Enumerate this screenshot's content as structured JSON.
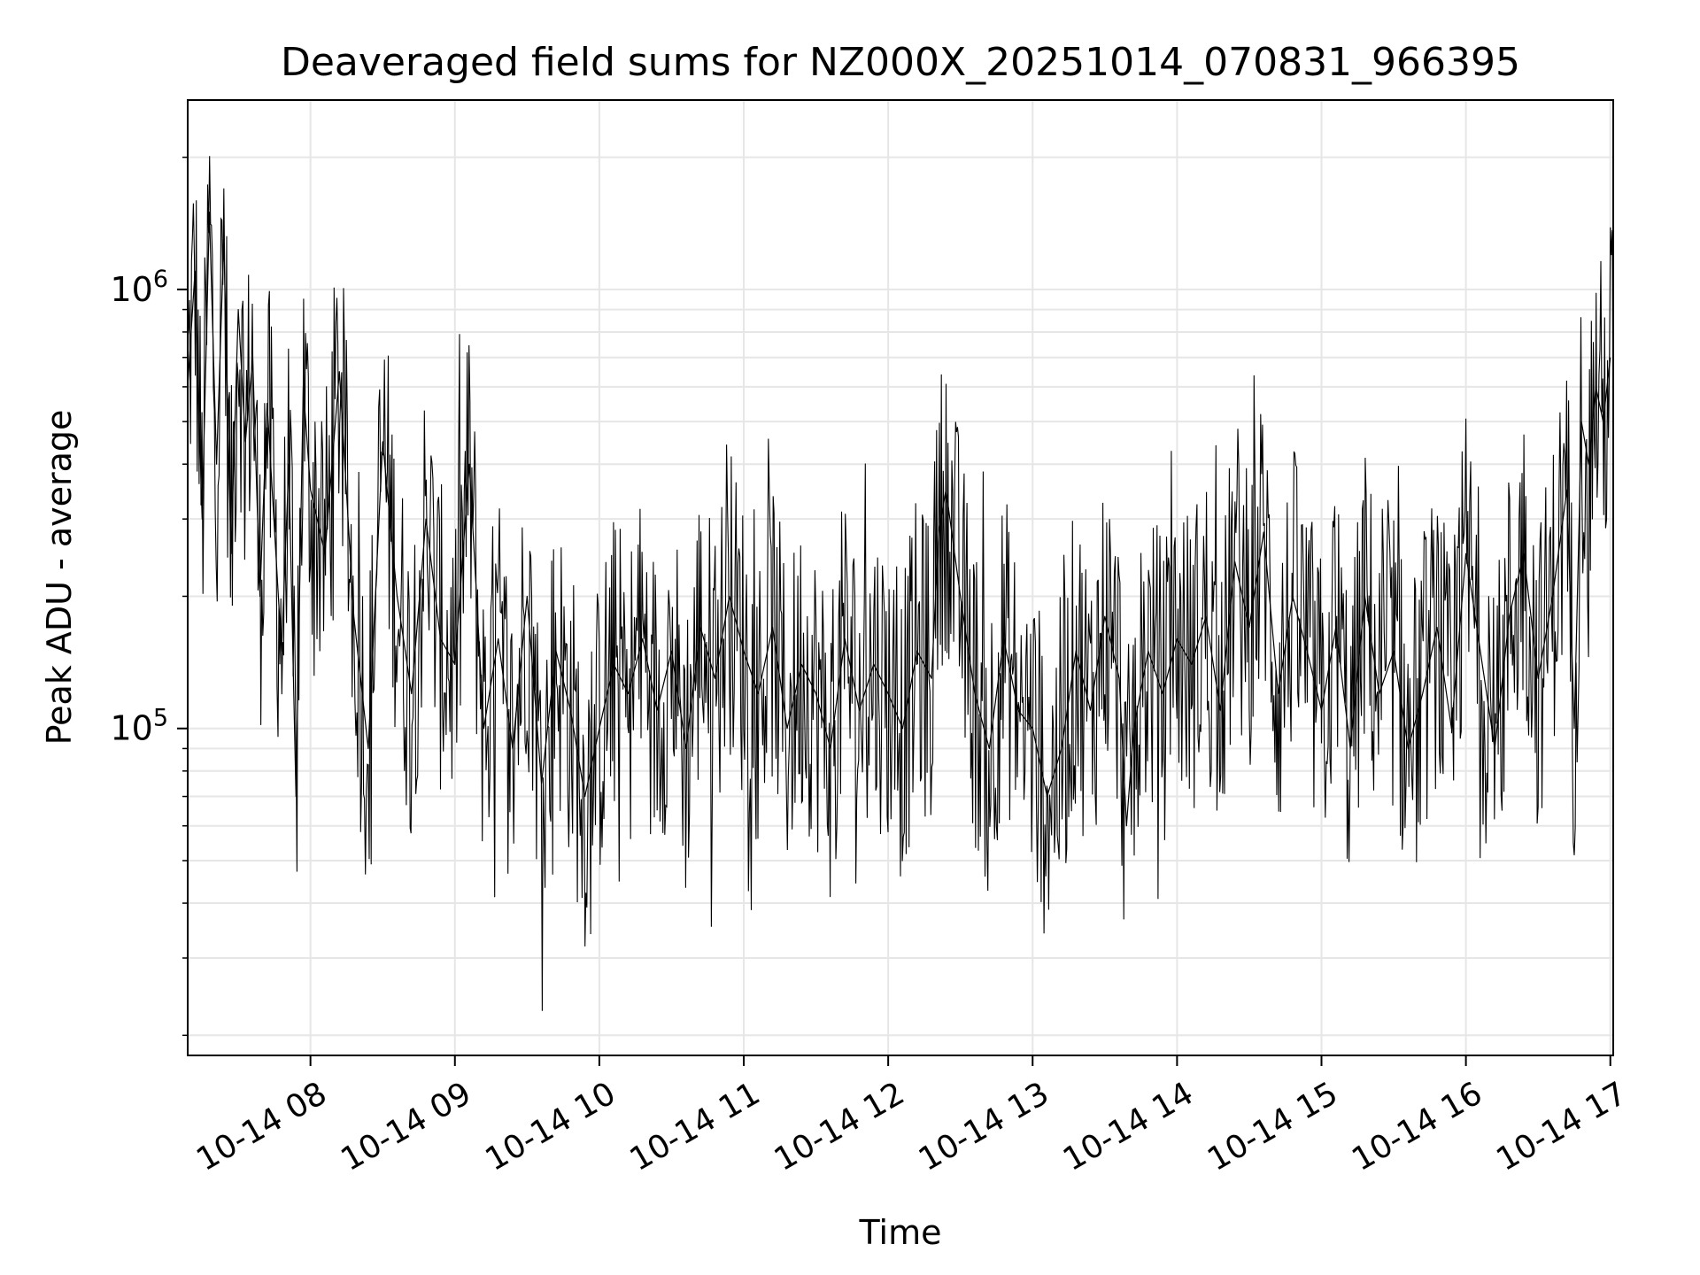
{
  "chart_data": {
    "type": "line",
    "title": "Deaveraged field sums for NZ000X_20251014_070831_966395",
    "xlabel": "Time",
    "ylabel": "Peak ADU - average",
    "yscale": "log",
    "ylim": [
      18000,
      2700000
    ],
    "xlim_hours": [
      7.15,
      17.02
    ],
    "grid": true,
    "legend": "none",
    "line_color": "#000000",
    "grid_color": "#e6e6e6",
    "x_tick_labels": [
      {
        "hour": 8,
        "label": "10-14 08"
      },
      {
        "hour": 9,
        "label": "10-14 09"
      },
      {
        "hour": 10,
        "label": "10-14 10"
      },
      {
        "hour": 11,
        "label": "10-14 11"
      },
      {
        "hour": 12,
        "label": "10-14 12"
      },
      {
        "hour": 13,
        "label": "10-14 13"
      },
      {
        "hour": 14,
        "label": "10-14 14"
      },
      {
        "hour": 15,
        "label": "10-14 15"
      },
      {
        "hour": 16,
        "label": "10-14 16"
      },
      {
        "hour": 17,
        "label": "10-14 17"
      }
    ],
    "y_tick_labels": [
      {
        "value": 100000,
        "base": "10",
        "exp": "5"
      },
      {
        "value": 1000000,
        "base": "10",
        "exp": "6"
      }
    ],
    "series": [
      {
        "name": "deaveraged field sum",
        "points": [
          [
            7.15,
            600000
          ],
          [
            7.2,
            1100000
          ],
          [
            7.25,
            300000
          ],
          [
            7.3,
            1500000
          ],
          [
            7.35,
            400000
          ],
          [
            7.4,
            1300000
          ],
          [
            7.45,
            250000
          ],
          [
            7.5,
            900000
          ],
          [
            7.55,
            450000
          ],
          [
            7.6,
            700000
          ],
          [
            7.65,
            200000
          ],
          [
            7.7,
            550000
          ],
          [
            7.8,
            150000
          ],
          [
            7.85,
            400000
          ],
          [
            7.9,
            70000
          ],
          [
            7.95,
            600000
          ],
          [
            8.0,
            350000
          ],
          [
            8.1,
            250000
          ],
          [
            8.2,
            650000
          ],
          [
            8.3,
            180000
          ],
          [
            8.4,
            90000
          ],
          [
            8.5,
            450000
          ],
          [
            8.6,
            200000
          ],
          [
            8.7,
            120000
          ],
          [
            8.8,
            300000
          ],
          [
            8.9,
            160000
          ],
          [
            9.0,
            140000
          ],
          [
            9.1,
            400000
          ],
          [
            9.2,
            100000
          ],
          [
            9.3,
            160000
          ],
          [
            9.4,
            90000
          ],
          [
            9.5,
            200000
          ],
          [
            9.6,
            75000
          ],
          [
            9.7,
            150000
          ],
          [
            9.8,
            110000
          ],
          [
            9.9,
            70000
          ],
          [
            10.0,
            100000
          ],
          [
            10.1,
            140000
          ],
          [
            10.2,
            120000
          ],
          [
            10.3,
            160000
          ],
          [
            10.4,
            110000
          ],
          [
            10.5,
            150000
          ],
          [
            10.6,
            90000
          ],
          [
            10.7,
            170000
          ],
          [
            10.8,
            130000
          ],
          [
            10.9,
            200000
          ],
          [
            11.0,
            150000
          ],
          [
            11.1,
            120000
          ],
          [
            11.2,
            170000
          ],
          [
            11.3,
            100000
          ],
          [
            11.4,
            140000
          ],
          [
            11.5,
            120000
          ],
          [
            11.6,
            90000
          ],
          [
            11.7,
            160000
          ],
          [
            11.8,
            110000
          ],
          [
            11.9,
            140000
          ],
          [
            12.0,
            120000
          ],
          [
            12.1,
            100000
          ],
          [
            12.2,
            150000
          ],
          [
            12.3,
            130000
          ],
          [
            12.35,
            280000
          ],
          [
            12.4,
            350000
          ],
          [
            12.5,
            200000
          ],
          [
            12.6,
            120000
          ],
          [
            12.7,
            90000
          ],
          [
            12.8,
            160000
          ],
          [
            12.9,
            110000
          ],
          [
            13.0,
            100000
          ],
          [
            13.1,
            70000
          ],
          [
            13.2,
            90000
          ],
          [
            13.3,
            150000
          ],
          [
            13.4,
            110000
          ],
          [
            13.5,
            180000
          ],
          [
            13.6,
            130000
          ],
          [
            13.65,
            60000
          ],
          [
            13.7,
            100000
          ],
          [
            13.8,
            150000
          ],
          [
            13.9,
            120000
          ],
          [
            14.0,
            160000
          ],
          [
            14.1,
            140000
          ],
          [
            14.2,
            180000
          ],
          [
            14.3,
            110000
          ],
          [
            14.4,
            240000
          ],
          [
            14.5,
            170000
          ],
          [
            14.6,
            280000
          ],
          [
            14.7,
            120000
          ],
          [
            14.8,
            200000
          ],
          [
            14.9,
            150000
          ],
          [
            15.0,
            110000
          ],
          [
            15.1,
            170000
          ],
          [
            15.2,
            90000
          ],
          [
            15.3,
            200000
          ],
          [
            15.4,
            120000
          ],
          [
            15.5,
            150000
          ],
          [
            15.6,
            90000
          ],
          [
            15.7,
            120000
          ],
          [
            15.8,
            170000
          ],
          [
            15.9,
            100000
          ],
          [
            16.0,
            250000
          ],
          [
            16.1,
            150000
          ],
          [
            16.2,
            90000
          ],
          [
            16.3,
            180000
          ],
          [
            16.4,
            250000
          ],
          [
            16.5,
            130000
          ],
          [
            16.6,
            200000
          ],
          [
            16.7,
            350000
          ],
          [
            16.75,
            100000
          ],
          [
            16.8,
            500000
          ],
          [
            16.85,
            400000
          ],
          [
            16.9,
            600000
          ],
          [
            16.95,
            500000
          ],
          [
            17.0,
            700000
          ]
        ]
      }
    ]
  }
}
